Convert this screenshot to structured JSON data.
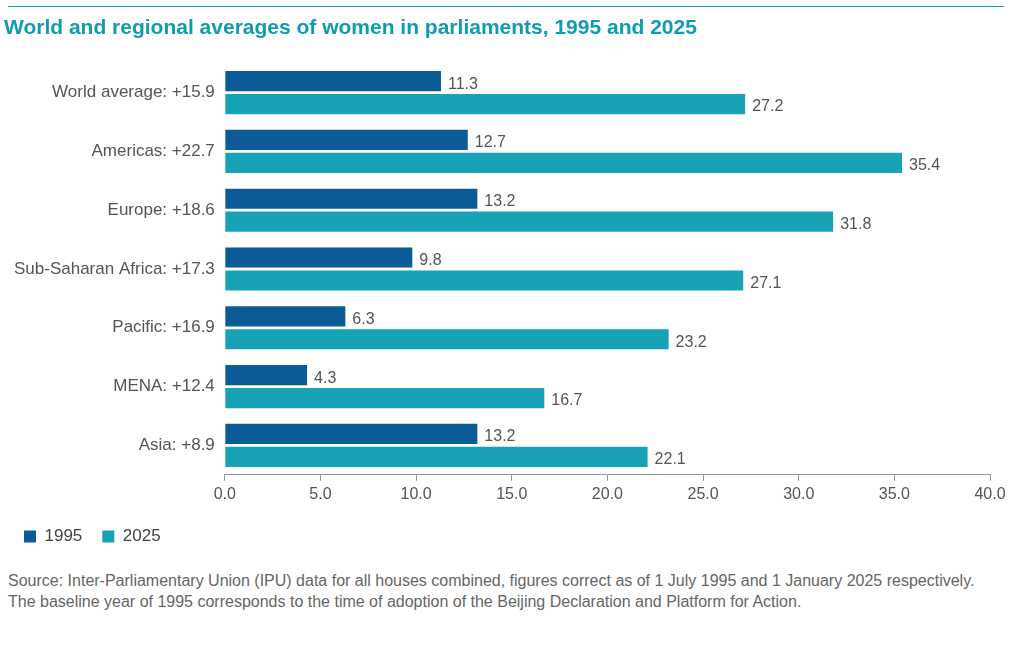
{
  "chart_data": {
    "type": "bar",
    "orientation": "horizontal",
    "title": "World and regional averages of women in parliaments, 1995 and 2025",
    "source": "Source: Inter-Parliamentary Union (IPU) data for all houses combined, figures correct as of 1 July 1995 and 1 January 2025 respectively. The baseline year of 1995 corresponds to the time of adoption of the Beijing Declaration and Platform for Action.",
    "categories": [
      "World average: +15.9",
      "Americas: +22.7",
      "Europe: +18.6",
      "Sub-Saharan Africa: +17.3",
      "Pacific: +16.9",
      "MENA: +12.4",
      "Asia: +8.9"
    ],
    "series": [
      {
        "name": "1995",
        "color": "#0b5c96",
        "values": [
          11.3,
          12.7,
          13.2,
          9.8,
          6.3,
          4.3,
          13.2
        ]
      },
      {
        "name": "2025",
        "color": "#17a2b5",
        "values": [
          27.2,
          35.4,
          31.8,
          27.1,
          23.2,
          16.7,
          22.1
        ]
      }
    ],
    "xlim": [
      0,
      40
    ],
    "xticks": [
      {
        "value": 0,
        "label": "0.0"
      },
      {
        "value": 5,
        "label": "5.0"
      },
      {
        "value": 10,
        "label": "10.0"
      },
      {
        "value": 15,
        "label": "15.0"
      },
      {
        "value": 20,
        "label": "20.0"
      },
      {
        "value": 25,
        "label": "25.0"
      },
      {
        "value": 30,
        "label": "30.0"
      },
      {
        "value": 35,
        "label": "35.0"
      },
      {
        "value": 40,
        "label": "40.0"
      }
    ],
    "grid": false,
    "legend": "bottom",
    "data_labels": true
  }
}
